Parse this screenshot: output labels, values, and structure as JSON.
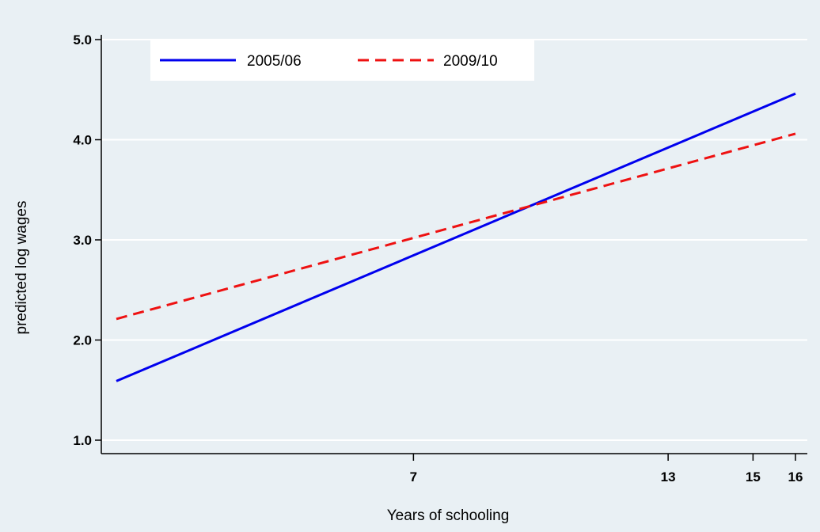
{
  "colors": {
    "background": "#e9f0f4",
    "plot_background": "#e9f0f4",
    "gridline": "#ffffff",
    "axis": "#000000",
    "legend_background": "#ffffff"
  },
  "chart_data": {
    "type": "line",
    "title": "",
    "xlabel": "Years of schooling",
    "ylabel": "predicted log wages",
    "xlim": [
      0,
      16
    ],
    "ylim": [
      1.0,
      5.0
    ],
    "x_ticks": [
      7,
      13,
      15,
      16
    ],
    "x_tick_labels": [
      "7",
      "13",
      "15",
      "16"
    ],
    "y_ticks": [
      1.0,
      2.0,
      3.0,
      4.0,
      5.0
    ],
    "y_tick_labels": [
      "1.0",
      "2.0",
      "3.0",
      "4.0",
      "5.0"
    ],
    "grid": true,
    "legend_position": "top",
    "series": [
      {
        "name": "2005/06",
        "color": "#0000ee",
        "style": "solid",
        "x": [
          0,
          16
        ],
        "y": [
          1.59,
          4.46
        ]
      },
      {
        "name": "2009/10",
        "color": "#ee1111",
        "style": "dashed",
        "x": [
          0,
          16
        ],
        "y": [
          2.21,
          4.06
        ]
      }
    ]
  }
}
